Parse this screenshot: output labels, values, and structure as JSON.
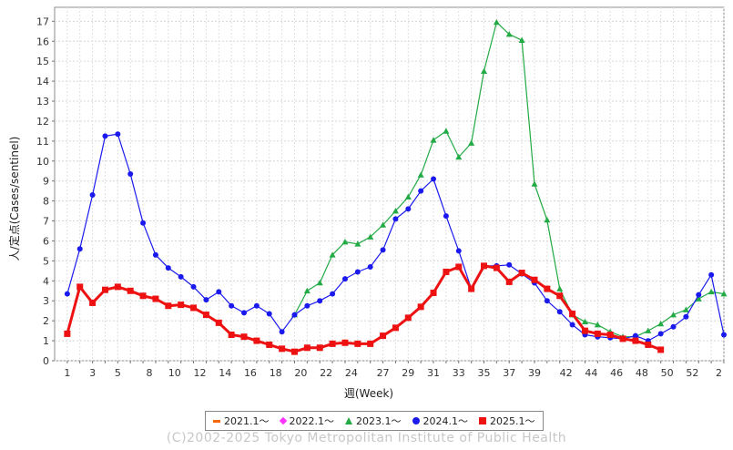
{
  "chart_data": {
    "type": "line",
    "xlabel": "週(Week)",
    "ylabel": "人/定点(Cases/sentinel)",
    "xlim": [
      0,
      53
    ],
    "ylim": [
      0,
      17.7
    ],
    "x_ticks": [
      "1",
      "3",
      "5",
      "8",
      "10",
      "12",
      "14",
      "16",
      "18",
      "20",
      "22",
      "24",
      "27",
      "29",
      "31",
      "33",
      "35",
      "37",
      "39",
      "42",
      "44",
      "46",
      "48",
      "50",
      "52",
      "2"
    ],
    "y_ticks": [
      "0",
      "1",
      "2",
      "3",
      "4",
      "5",
      "6",
      "7",
      "8",
      "9",
      "10",
      "11",
      "12",
      "13",
      "14",
      "15",
      "16",
      "17"
    ],
    "grid": true,
    "legend_position": "bottom",
    "series": [
      {
        "name": "2021.1～",
        "color": "#ff6600",
        "marker": "square",
        "x": [],
        "y": []
      },
      {
        "name": "2022.1～",
        "color": "#ff33ff",
        "marker": "diamond",
        "x": [],
        "y": []
      },
      {
        "name": "2023.1～",
        "color": "#22aa44",
        "marker": "triangle",
        "x": [
          19,
          20,
          21,
          22,
          23,
          24,
          25,
          26,
          27,
          28,
          29,
          30,
          31,
          32,
          33,
          34,
          35,
          36,
          37,
          38,
          39,
          40,
          41,
          42,
          43,
          44,
          45,
          46,
          47,
          48,
          49,
          50,
          51,
          52,
          53
        ],
        "y": [
          2.3,
          3.5,
          3.9,
          5.3,
          5.95,
          5.85,
          6.2,
          6.8,
          7.5,
          8.2,
          9.3,
          11.05,
          11.5,
          10.2,
          10.9,
          14.5,
          16.95,
          16.35,
          16.05,
          8.85,
          7.05,
          3.6,
          2.3,
          1.95,
          1.8,
          1.45,
          1.2,
          1.2,
          1.5,
          1.85,
          2.3,
          2.55,
          3.1,
          3.45,
          3.35
        ]
      },
      {
        "name": "2024.1～",
        "color": "#1a1aee",
        "marker": "circle",
        "x": [
          1,
          2,
          3,
          4,
          5,
          6,
          7,
          8,
          9,
          10,
          11,
          12,
          13,
          14,
          15,
          16,
          17,
          18,
          19,
          20,
          21,
          22,
          23,
          24,
          25,
          26,
          27,
          28,
          29,
          30,
          31,
          32,
          33,
          34,
          35,
          36,
          37,
          38,
          39,
          40,
          41,
          42,
          43,
          44,
          45,
          46,
          47,
          48,
          49,
          50,
          51,
          52,
          53
        ],
        "y": [
          3.35,
          5.6,
          8.3,
          11.25,
          11.35,
          9.35,
          6.9,
          5.3,
          4.65,
          4.2,
          3.7,
          3.05,
          3.45,
          2.75,
          2.4,
          2.75,
          2.35,
          1.45,
          2.3,
          2.75,
          3.0,
          3.35,
          4.1,
          4.45,
          4.7,
          5.55,
          7.1,
          7.6,
          8.5,
          9.1,
          7.25,
          5.5,
          3.6,
          4.75,
          4.75,
          4.8,
          4.35,
          3.9,
          3.0,
          2.45,
          1.8,
          1.3,
          1.2,
          1.15,
          1.1,
          1.25,
          1.0,
          1.35,
          1.7,
          2.2,
          3.3,
          4.3,
          1.3
        ]
      },
      {
        "name": "2025.1～",
        "color": "#ee1111",
        "marker": "square",
        "x": [
          1,
          2,
          3,
          4,
          5,
          6,
          7,
          8,
          9,
          10,
          11,
          12,
          13,
          14,
          15,
          16,
          17,
          18,
          19,
          20,
          21,
          22,
          23,
          24,
          25,
          26,
          27,
          28,
          29,
          30,
          31,
          32,
          33,
          34,
          35,
          36,
          37,
          38,
          39,
          40,
          41,
          42,
          43,
          44,
          45,
          46,
          47,
          48
        ],
        "y": [
          1.35,
          3.7,
          2.9,
          3.55,
          3.7,
          3.5,
          3.25,
          3.1,
          2.75,
          2.8,
          2.65,
          2.3,
          1.9,
          1.3,
          1.2,
          1.0,
          0.8,
          0.6,
          0.45,
          0.65,
          0.65,
          0.85,
          0.9,
          0.85,
          0.85,
          1.25,
          1.65,
          2.15,
          2.7,
          3.4,
          4.45,
          4.7,
          3.6,
          4.75,
          4.65,
          3.95,
          4.4,
          4.05,
          3.6,
          3.25,
          2.35,
          1.5,
          1.35,
          1.3,
          1.1,
          1.0,
          0.8,
          0.55
        ]
      }
    ]
  },
  "credit": "(C)2002-2025 Tokyo Metropolitan Institute of Public Health"
}
